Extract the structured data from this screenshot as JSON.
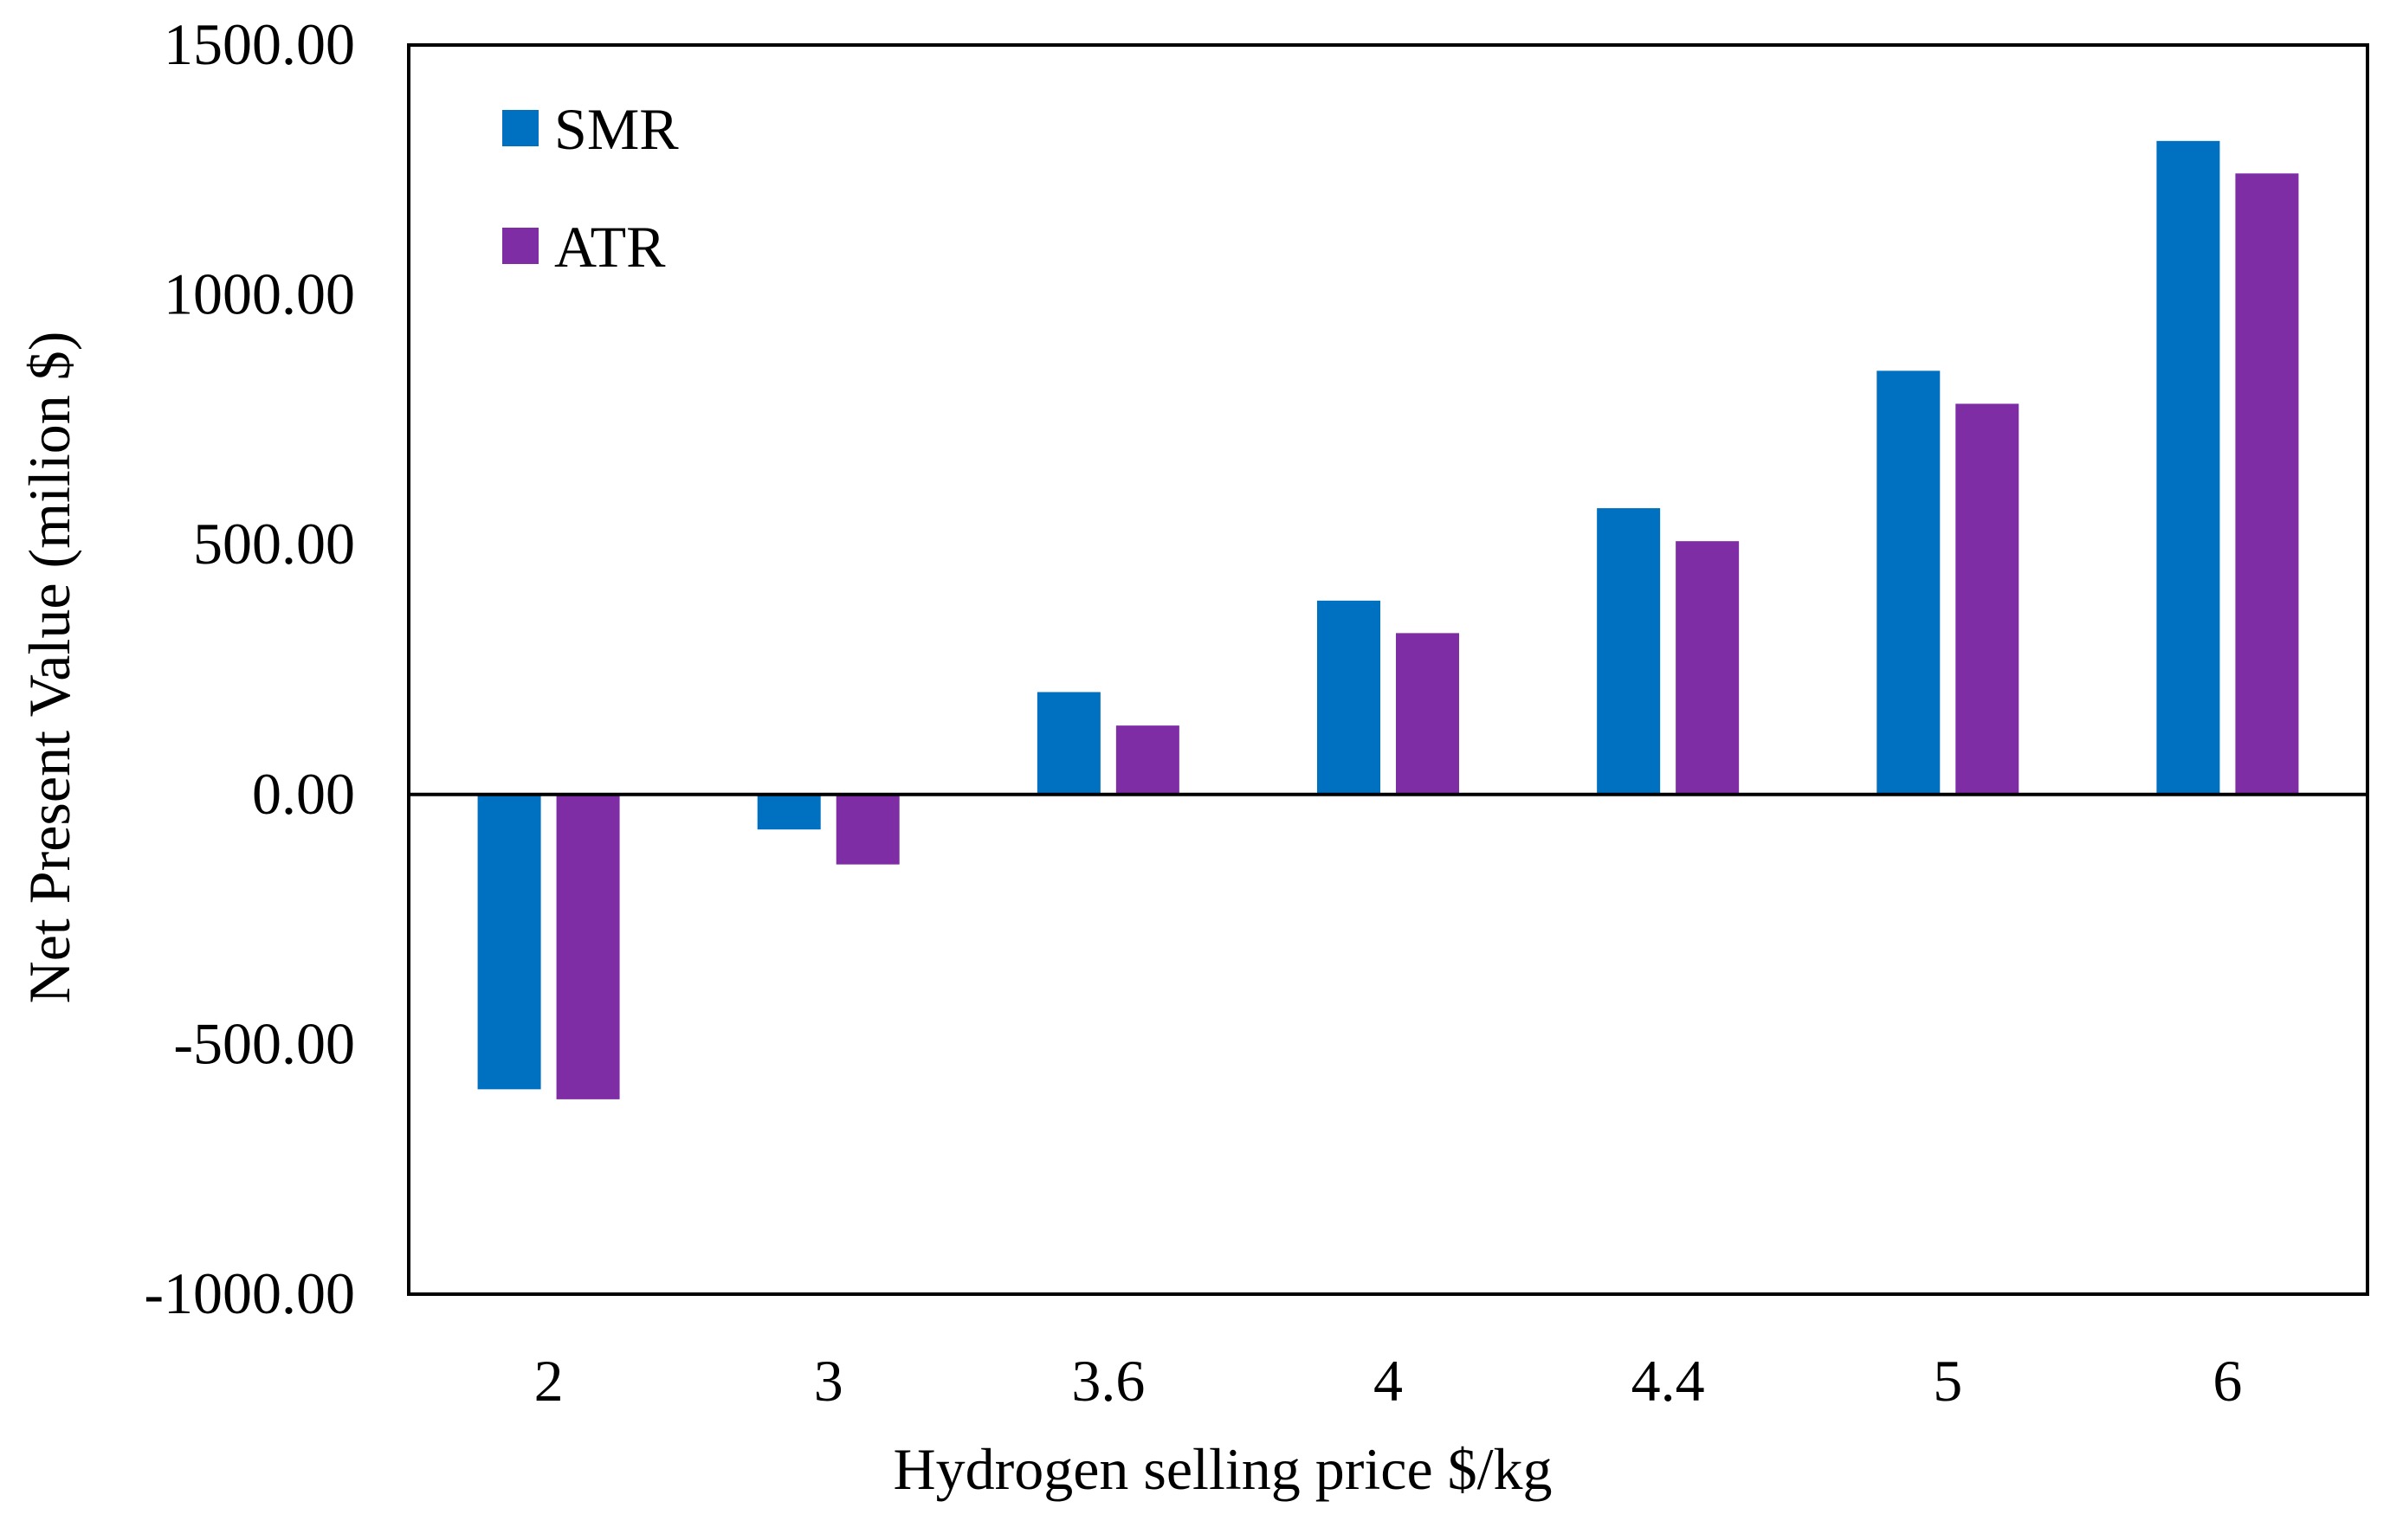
{
  "chart_data": {
    "type": "bar",
    "title": "",
    "xlabel": "Hydrogen selling price $/kg",
    "ylabel": "Net Present Value (milion $)",
    "categories": [
      "2",
      "3",
      "3.6",
      "4",
      "4.4",
      "5",
      "6"
    ],
    "series": [
      {
        "name": "SMR",
        "color": "#0070C0",
        "values": [
          -590,
          -70,
          205,
          388,
          573,
          848,
          1308
        ]
      },
      {
        "name": "ATR",
        "color": "#7F2DA5",
        "values": [
          -610,
          -140,
          138,
          323,
          507,
          782,
          1243
        ]
      }
    ],
    "ylim": [
      -1000,
      1500
    ],
    "yticks": [
      -1000,
      -500,
      0,
      500,
      1000,
      1500
    ],
    "ytick_labels": [
      "-1000.00",
      "-500.00",
      "0.00",
      "500.00",
      "1000.00",
      "1500.00"
    ],
    "grid": false,
    "legend_position": "top-left"
  }
}
